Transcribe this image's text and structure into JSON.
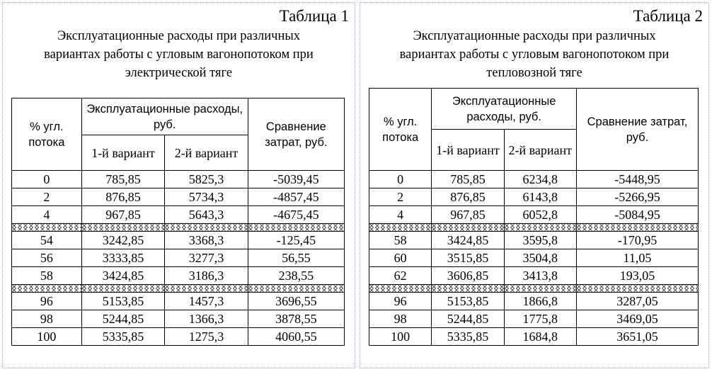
{
  "tables": [
    {
      "number": "Таблица 1",
      "caption": [
        "Эксплуатационные расходы при различных",
        "вариантах работы с угловым вагонопотоком при",
        "электрической тяге"
      ],
      "headers": {
        "pct": "% угл. потока",
        "costs": "Эксплуатационные расходы, руб.",
        "v1": "1-й вариант",
        "v2": "2-й вариант",
        "cmp": "Сравнение затрат, руб."
      },
      "groups": [
        [
          [
            "0",
            "785,85",
            "5825,3",
            "-5039,45"
          ],
          [
            "2",
            "876,85",
            "5734,3",
            "-4857,45"
          ],
          [
            "4",
            "967,85",
            "5643,3",
            "-4675,45"
          ]
        ],
        [
          [
            "54",
            "3242,85",
            "3368,3",
            "-125,45"
          ],
          [
            "56",
            "3333,85",
            "3277,3",
            "56,55"
          ],
          [
            "58",
            "3424,85",
            "3186,3",
            "238,55"
          ]
        ],
        [
          [
            "96",
            "5153,85",
            "1457,3",
            "3696,55"
          ],
          [
            "98",
            "5244,85",
            "1366,3",
            "3878,55"
          ],
          [
            "100",
            "5335,85",
            "1275,3",
            "4060,55"
          ]
        ]
      ]
    },
    {
      "number": "Таблица 2",
      "caption": [
        "Эксплуатационные расходы при различных",
        "вариантах работы с угловым вагонопотоком при",
        "тепловозной тяге"
      ],
      "headers": {
        "pct": "% угл. потока",
        "costs": "Эксплуатационные расходы, руб.",
        "v1": "1-й вариант",
        "v2": "2-й вариант",
        "cmp": "Сравнение затрат, руб."
      },
      "groups": [
        [
          [
            "0",
            "785,85",
            "6234,8",
            "-5448,95"
          ],
          [
            "2",
            "876,85",
            "6143,8",
            "-5266,95"
          ],
          [
            "4",
            "967,85",
            "6052,8",
            "-5084,95"
          ]
        ],
        [
          [
            "58",
            "3424,85",
            "3595,8",
            "-170,95"
          ],
          [
            "60",
            "3515,85",
            "3504,8",
            "11,05"
          ],
          [
            "62",
            "3606,85",
            "3413,8",
            "193,05"
          ]
        ],
        [
          [
            "96",
            "5153,85",
            "1866,8",
            "3287,05"
          ],
          [
            "98",
            "5244,85",
            "1775,8",
            "3469,05"
          ],
          [
            "100",
            "5335,85",
            "1684,8",
            "3651,05"
          ]
        ]
      ]
    }
  ]
}
